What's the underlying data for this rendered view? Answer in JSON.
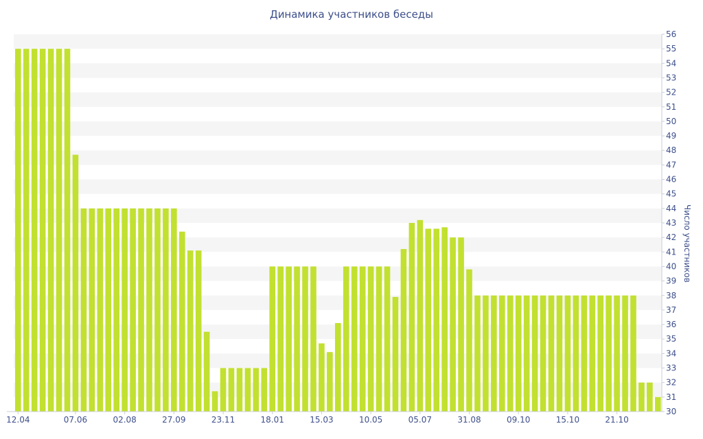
{
  "chart_data": {
    "type": "bar",
    "title": "Динамика участников беседы",
    "ylabel": "Число участников",
    "xlabel": "",
    "ylim": [
      30,
      56
    ],
    "y_ticks": [
      30,
      31,
      32,
      33,
      34,
      35,
      36,
      37,
      38,
      39,
      40,
      41,
      42,
      43,
      44,
      45,
      46,
      47,
      48,
      49,
      50,
      51,
      52,
      53,
      54,
      55,
      56
    ],
    "x_tick_labels": [
      "12.04",
      "07.06",
      "02.08",
      "27.09",
      "23.11",
      "18.01",
      "15.03",
      "10.05",
      "05.07",
      "31.08",
      "09.10",
      "15.10",
      "21.10"
    ],
    "x_tick_positions": [
      0,
      7,
      13,
      19,
      25,
      31,
      37,
      43,
      49,
      55,
      61,
      67,
      73
    ],
    "grid": true,
    "bar_color": "#c2e030",
    "grid_band_color": "#f5f5f5",
    "text_color": "#3d4f8a",
    "values": [
      55,
      55,
      55,
      55,
      55,
      55,
      55,
      47.7,
      44,
      44,
      44,
      44,
      44,
      44,
      44,
      44,
      44,
      44,
      44,
      44,
      42.4,
      41.1,
      41.1,
      35.5,
      31.4,
      33,
      33,
      33,
      33,
      33,
      33,
      40,
      40,
      40,
      40,
      40,
      40,
      34.7,
      34.1,
      36.1,
      40,
      40,
      40,
      40,
      40,
      40,
      37.9,
      41.2,
      43,
      43.2,
      42.6,
      42.6,
      42.7,
      42,
      42,
      39.8,
      38,
      38,
      38,
      38,
      38,
      38,
      38,
      38,
      38,
      38,
      38,
      38,
      38,
      38,
      38,
      38,
      38,
      38,
      38,
      38,
      32,
      32,
      31
    ]
  }
}
